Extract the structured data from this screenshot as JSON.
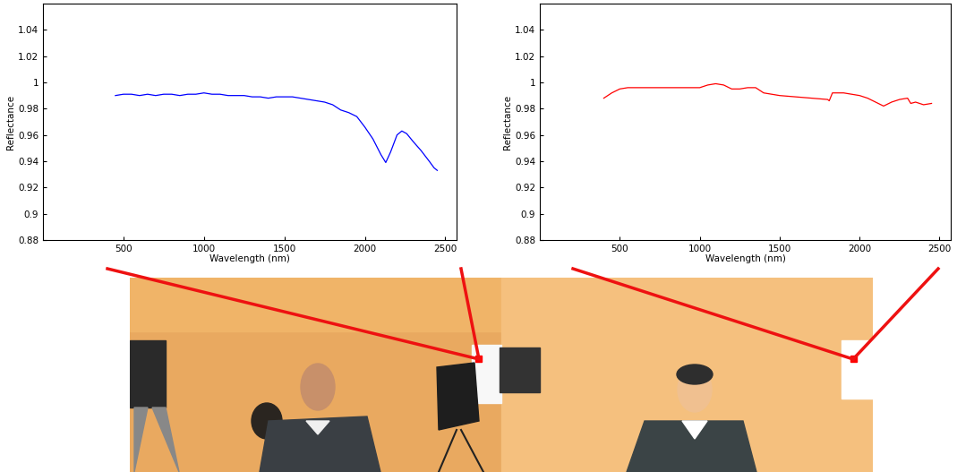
{
  "chart_data": [
    {
      "type": "line",
      "x_label": "Wavelength (nm)",
      "y_label": "Reflectance",
      "xlim": [
        0,
        2570
      ],
      "ylim": [
        0.88,
        1.06
      ],
      "xticks": [
        500,
        1000,
        1500,
        2000,
        2500
      ],
      "yticks": [
        0.88,
        0.9,
        0.92,
        0.94,
        0.96,
        0.98,
        1,
        1.02,
        1.04
      ],
      "color": "#0000ff",
      "x": [
        450,
        500,
        550,
        600,
        650,
        700,
        750,
        800,
        850,
        900,
        950,
        1000,
        1050,
        1100,
        1150,
        1200,
        1250,
        1300,
        1350,
        1400,
        1450,
        1500,
        1550,
        1600,
        1650,
        1700,
        1750,
        1800,
        1850,
        1900,
        1950,
        2000,
        2050,
        2100,
        2130,
        2160,
        2200,
        2230,
        2260,
        2300,
        2350,
        2400,
        2430,
        2450
      ],
      "values": [
        0.99,
        0.991,
        0.991,
        0.99,
        0.991,
        0.99,
        0.991,
        0.991,
        0.99,
        0.991,
        0.991,
        0.992,
        0.991,
        0.991,
        0.99,
        0.99,
        0.99,
        0.989,
        0.989,
        0.988,
        0.989,
        0.989,
        0.989,
        0.988,
        0.987,
        0.986,
        0.985,
        0.983,
        0.979,
        0.977,
        0.974,
        0.966,
        0.957,
        0.945,
        0.939,
        0.947,
        0.96,
        0.963,
        0.961,
        0.955,
        0.948,
        0.94,
        0.935,
        0.933
      ]
    },
    {
      "type": "line",
      "x_label": "Wavelength (nm)",
      "y_label": "Reflectance",
      "xlim": [
        0,
        2570
      ],
      "ylim": [
        0.88,
        1.06
      ],
      "xticks": [
        500,
        1000,
        1500,
        2000,
        2500
      ],
      "yticks": [
        0.88,
        0.9,
        0.92,
        0.94,
        0.96,
        0.98,
        1,
        1.02,
        1.04
      ],
      "color": "#ff0000",
      "x": [
        400,
        450,
        500,
        550,
        600,
        700,
        800,
        900,
        1000,
        1050,
        1100,
        1150,
        1200,
        1250,
        1300,
        1350,
        1400,
        1500,
        1600,
        1700,
        1800,
        1810,
        1830,
        1900,
        2000,
        2050,
        2100,
        2150,
        2200,
        2250,
        2300,
        2320,
        2350,
        2400,
        2450
      ],
      "values": [
        0.988,
        0.992,
        0.995,
        0.996,
        0.996,
        0.996,
        0.996,
        0.996,
        0.996,
        0.998,
        0.999,
        0.998,
        0.995,
        0.995,
        0.996,
        0.996,
        0.992,
        0.99,
        0.989,
        0.988,
        0.987,
        0.986,
        0.992,
        0.992,
        0.99,
        0.988,
        0.985,
        0.982,
        0.985,
        0.987,
        0.988,
        0.984,
        0.985,
        0.983,
        0.984
      ]
    }
  ]
}
